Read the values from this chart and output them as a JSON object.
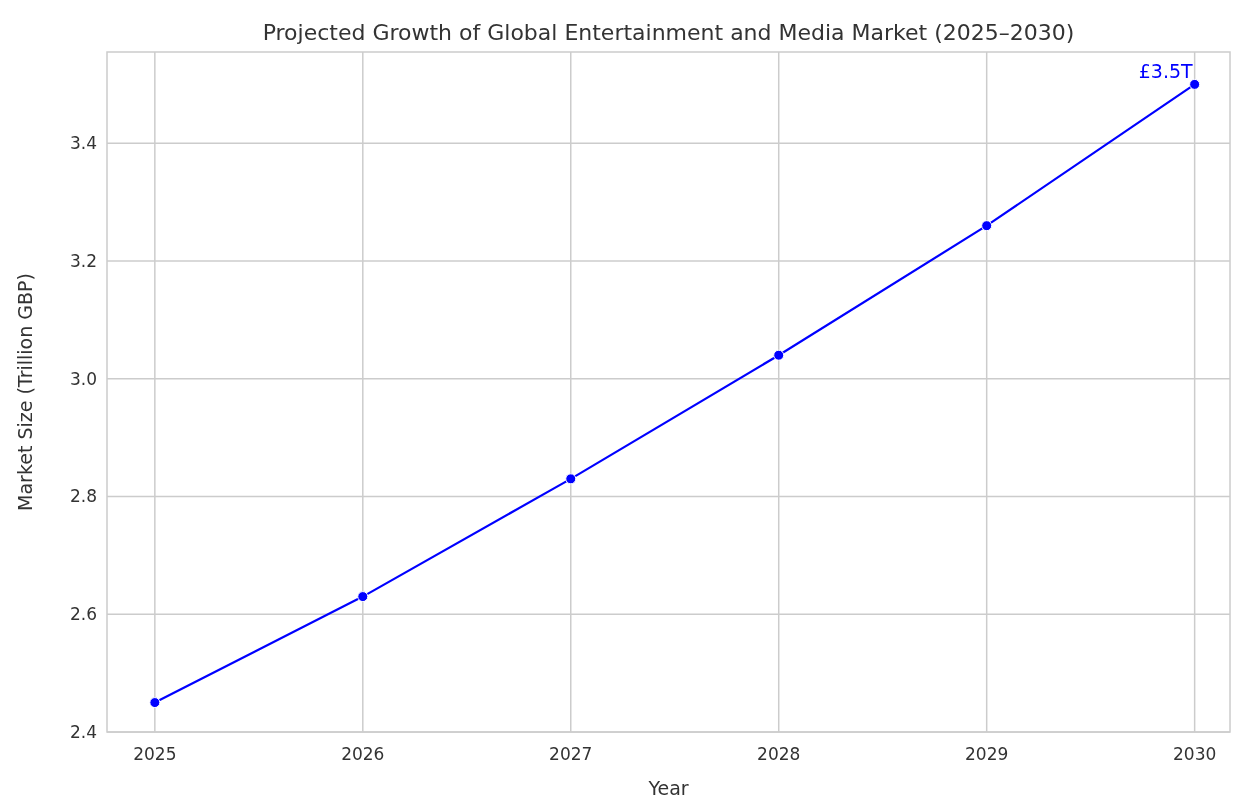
{
  "chart_data": {
    "type": "line",
    "title": "Projected Growth of Global Entertainment and Media Market (2025–2030)",
    "xlabel": "Year",
    "ylabel": "Market Size (Trillion GBP)",
    "x": [
      2025,
      2026,
      2027,
      2028,
      2029,
      2030
    ],
    "series": [
      {
        "color": "#0000ff",
        "values": [
          2.45,
          2.63,
          2.83,
          3.04,
          3.26,
          3.5
        ]
      }
    ],
    "xlim": [
      2024.77,
      2030.17
    ],
    "xticks": [
      2025,
      2026,
      2027,
      2028,
      2029,
      2030
    ],
    "ylim": [
      2.4,
      3.555
    ],
    "yticks": [
      2.4,
      2.6,
      2.8,
      {
        "value": 3,
        "label": "3.0"
      },
      3.2,
      3.4
    ],
    "grid": true,
    "marker": "circle",
    "line_style": "solid",
    "annotations": [
      {
        "text": "£3.5T",
        "x": 2030,
        "y": 3.5
      }
    ]
  }
}
